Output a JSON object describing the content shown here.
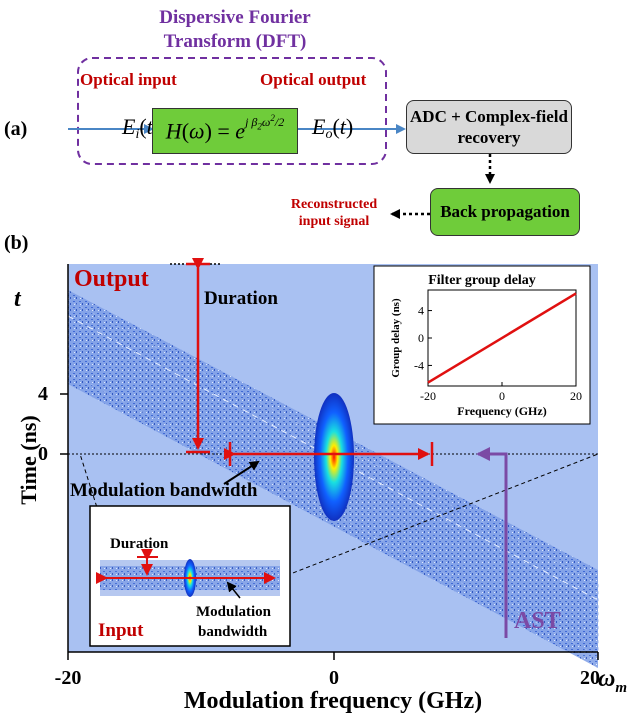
{
  "panel_a": {
    "label": "(a)",
    "dft_title": "Dispersive Fourier Transform (DFT)",
    "optical_input_label": "Optical input",
    "optical_output_label": "Optical output",
    "input_field": "E_i(t)",
    "output_field": "E_o(t)",
    "transfer_function": "H(ω) = e^{jβ₂ω²/2}",
    "adc_box": "ADC + Complex-field recovery",
    "backprop_box": "Back propagation",
    "reconstructed_label": "Reconstructed input signal"
  },
  "panel_b": {
    "label": "(b)",
    "t_axis_symbol": "t",
    "omega_axis_symbol": "ω_m",
    "ylabel": "Time (ns)",
    "xlabel": "Modulation frequency (GHz)",
    "ytick_4": "4",
    "ytick_0": "0",
    "xtick_left": "-20",
    "xtick_mid": "0",
    "xtick_right": "20",
    "output_label": "Output",
    "duration_label": "Duration",
    "modulation_bandwidth_label": "Modulation bandwidth",
    "ast_label": "AST",
    "inset_input_label": "Input",
    "inset_duration_label": "Duration",
    "inset_modbw_label": "Modulation bandwidth"
  },
  "chart_data": {
    "type": "line",
    "title": "Filter group delay",
    "xlabel": "Frequency (GHz)",
    "ylabel": "Group delay (ns)",
    "xlim": [
      -20,
      20
    ],
    "ylim": [
      -7,
      7
    ],
    "xticks": [
      "-20",
      "0",
      "20"
    ],
    "yticks": [
      "4",
      "0",
      "-4"
    ],
    "x": [
      -20,
      20
    ],
    "series": [
      {
        "values": [
          -6.5,
          6.5
        ]
      }
    ],
    "color": "#e01010"
  },
  "colors": {
    "plot_bg": "#a9c1f2",
    "dft_border": "#7030a0",
    "box_green": "#6fcc3a",
    "box_gray": "#d9d9d9",
    "accent_red": "#c00000",
    "arrow_blue": "#4a86c5"
  }
}
